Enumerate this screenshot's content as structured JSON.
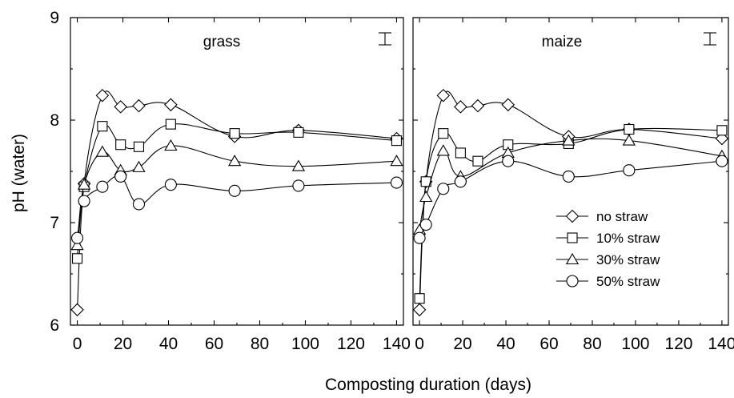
{
  "chart_data": {
    "type": "line",
    "ylabel": "pH (water)",
    "xlabel": "Composting duration (days)",
    "xlim": [
      -3,
      143
    ],
    "ylim": [
      6,
      9
    ],
    "xticks": [
      0,
      20,
      40,
      60,
      80,
      100,
      120,
      140
    ],
    "yticks": [
      6,
      7,
      8,
      9
    ],
    "legend": {
      "location": "lower-right of maize panel",
      "entries": [
        {
          "name": "no straw",
          "marker": "diamond"
        },
        {
          "name": "10% straw",
          "marker": "square"
        },
        {
          "name": "30% straw",
          "marker": "triangle"
        },
        {
          "name": "50% straw",
          "marker": "circle"
        }
      ]
    },
    "panels": [
      {
        "title": "grass",
        "series": [
          {
            "name": "no straw",
            "marker": "diamond",
            "points": [
              [
                0,
                6.15
              ],
              [
                3,
                7.38
              ],
              [
                11,
                8.24
              ],
              [
                19,
                8.13
              ],
              [
                27,
                8.14
              ],
              [
                41,
                8.15
              ],
              [
                69,
                7.84
              ],
              [
                97,
                7.9
              ],
              [
                140,
                7.82
              ]
            ]
          },
          {
            "name": "10% straw",
            "marker": "square",
            "points": [
              [
                0,
                6.65
              ],
              [
                3,
                7.35
              ],
              [
                11,
                7.94
              ],
              [
                19,
                7.76
              ],
              [
                27,
                7.74
              ],
              [
                41,
                7.96
              ],
              [
                69,
                7.87
              ],
              [
                97,
                7.88
              ],
              [
                140,
                7.8
              ]
            ]
          },
          {
            "name": "30% straw",
            "marker": "triangle",
            "points": [
              [
                0,
                6.78
              ],
              [
                3,
                7.37
              ],
              [
                11,
                7.69
              ],
              [
                19,
                7.51
              ],
              [
                27,
                7.54
              ],
              [
                41,
                7.75
              ],
              [
                69,
                7.6
              ],
              [
                97,
                7.55
              ],
              [
                140,
                7.6
              ]
            ]
          },
          {
            "name": "50% straw",
            "marker": "circle",
            "points": [
              [
                0,
                6.85
              ],
              [
                3,
                7.21
              ],
              [
                11,
                7.35
              ],
              [
                19,
                7.45
              ],
              [
                27,
                7.18
              ],
              [
                41,
                7.37
              ],
              [
                69,
                7.31
              ],
              [
                97,
                7.36
              ],
              [
                140,
                7.39
              ]
            ]
          }
        ]
      },
      {
        "title": "maize",
        "series": [
          {
            "name": "no straw",
            "marker": "diamond",
            "points": [
              [
                0,
                6.15
              ],
              [
                3,
                7.4
              ],
              [
                11,
                8.24
              ],
              [
                19,
                8.13
              ],
              [
                27,
                8.14
              ],
              [
                41,
                8.15
              ],
              [
                69,
                7.84
              ],
              [
                97,
                7.91
              ],
              [
                140,
                7.82
              ]
            ]
          },
          {
            "name": "10% straw",
            "marker": "square",
            "points": [
              [
                0,
                6.26
              ],
              [
                3,
                7.4
              ],
              [
                11,
                7.87
              ],
              [
                19,
                7.68
              ],
              [
                27,
                7.6
              ],
              [
                41,
                7.76
              ],
              [
                69,
                7.77
              ],
              [
                97,
                7.91
              ],
              [
                140,
                7.9
              ]
            ]
          },
          {
            "name": "30% straw",
            "marker": "triangle",
            "points": [
              [
                0,
                6.93
              ],
              [
                3,
                7.25
              ],
              [
                11,
                7.7
              ],
              [
                19,
                7.45
              ],
              [
                41,
                7.68
              ],
              [
                69,
                7.8
              ],
              [
                97,
                7.8
              ],
              [
                140,
                7.65
              ]
            ]
          },
          {
            "name": "50% straw",
            "marker": "circle",
            "points": [
              [
                0,
                6.85
              ],
              [
                3,
                6.98
              ],
              [
                11,
                7.33
              ],
              [
                19,
                7.4
              ],
              [
                41,
                7.6
              ],
              [
                69,
                7.45
              ],
              [
                97,
                7.51
              ],
              [
                140,
                7.6
              ]
            ]
          }
        ]
      }
    ]
  }
}
